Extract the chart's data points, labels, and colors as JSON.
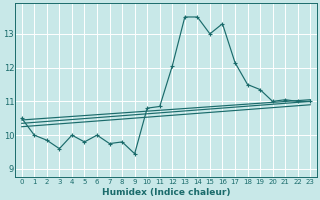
{
  "xlabel": "Humidex (Indice chaleur)",
  "background_color": "#c8e8e8",
  "grid_color": "#b0d0d0",
  "line_color": "#1a6b6b",
  "xlim": [
    -0.5,
    23.5
  ],
  "ylim": [
    8.75,
    13.9
  ],
  "yticks": [
    9,
    10,
    11,
    12,
    13
  ],
  "xticks": [
    0,
    1,
    2,
    3,
    4,
    5,
    6,
    7,
    8,
    9,
    10,
    11,
    12,
    13,
    14,
    15,
    16,
    17,
    18,
    19,
    20,
    21,
    22,
    23
  ],
  "series": [
    [
      0,
      10.5
    ],
    [
      1,
      10.0
    ],
    [
      2,
      9.85
    ],
    [
      3,
      9.6
    ],
    [
      4,
      10.0
    ],
    [
      5,
      9.8
    ],
    [
      6,
      10.0
    ],
    [
      7,
      9.75
    ],
    [
      8,
      9.8
    ],
    [
      9,
      9.45
    ],
    [
      10,
      10.8
    ],
    [
      11,
      10.85
    ],
    [
      12,
      12.05
    ],
    [
      13,
      13.5
    ],
    [
      14,
      13.5
    ],
    [
      15,
      13.0
    ],
    [
      16,
      13.3
    ],
    [
      17,
      12.15
    ],
    [
      18,
      11.5
    ],
    [
      19,
      11.35
    ],
    [
      20,
      11.0
    ],
    [
      21,
      11.05
    ],
    [
      22,
      11.0
    ],
    [
      23,
      11.0
    ]
  ],
  "trend_lines": [
    [
      [
        0,
        10.45
      ],
      [
        23,
        11.05
      ]
    ],
    [
      [
        0,
        10.35
      ],
      [
        23,
        11.0
      ]
    ],
    [
      [
        0,
        10.25
      ],
      [
        23,
        10.9
      ]
    ]
  ]
}
